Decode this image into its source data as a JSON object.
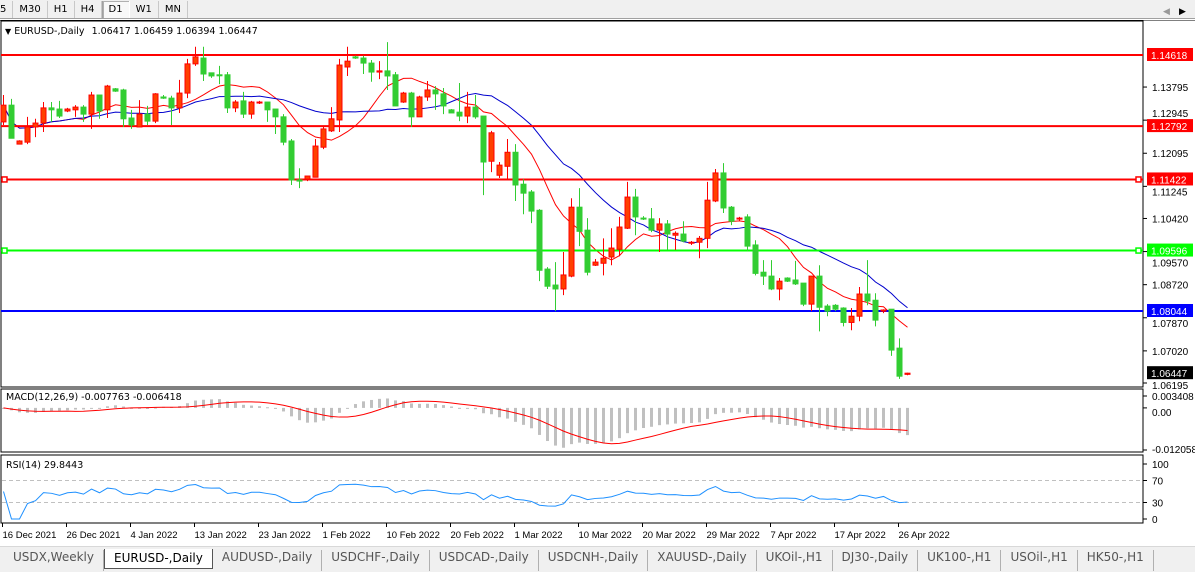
{
  "toolbar": {
    "timeframes": [
      "5",
      "M30",
      "H1",
      "H4",
      "D1",
      "W1",
      "MN"
    ],
    "active": "D1"
  },
  "chart": {
    "symbol": "EURUSD-,Daily",
    "ohlc": "1.06417 1.06459 1.06394 1.06447"
  },
  "chart_data": {
    "type": "candlestick",
    "colors": {
      "bull": "#ff0000",
      "bull_fill": "#ff4000",
      "bear": "#32cd32",
      "ma_fast": "#ff0000",
      "ma_slow": "#0000cd",
      "macd_hist": "#c0c0c0",
      "macd_signal": "#ff0000",
      "rsi": "#1e90ff"
    },
    "candles": [
      [
        1.129,
        1.1359,
        1.1282,
        1.1333
      ],
      [
        1.1333,
        1.1349,
        1.1248,
        1.1248
      ],
      [
        1.1233,
        1.1243,
        1.1233,
        1.1241
      ],
      [
        1.1238,
        1.1303,
        1.1233,
        1.1277
      ],
      [
        1.1277,
        1.1298,
        1.1251,
        1.1287
      ],
      [
        1.1287,
        1.1341,
        1.1264,
        1.1326
      ],
      [
        1.1326,
        1.1341,
        1.129,
        1.1321
      ],
      [
        1.1323,
        1.1344,
        1.13,
        1.1305
      ],
      [
        1.1318,
        1.1326,
        1.1315,
        1.1323
      ],
      [
        1.1321,
        1.1333,
        1.1303,
        1.1328
      ],
      [
        1.1328,
        1.1333,
        1.129,
        1.131
      ],
      [
        1.131,
        1.1367,
        1.1272,
        1.1359
      ],
      [
        1.1359,
        1.1359,
        1.1298,
        1.1318
      ],
      [
        1.1321,
        1.1385,
        1.13,
        1.1382
      ],
      [
        1.1375,
        1.1377,
        1.1367,
        1.1369
      ],
      [
        1.1372,
        1.1375,
        1.1277,
        1.1298
      ],
      [
        1.13,
        1.1321,
        1.1272,
        1.1282
      ],
      [
        1.1277,
        1.1346,
        1.1277,
        1.131
      ],
      [
        1.131,
        1.1331,
        1.1282,
        1.1292
      ],
      [
        1.1292,
        1.1364,
        1.1287,
        1.1362
      ],
      [
        1.1354,
        1.1359,
        1.1349,
        1.1351
      ],
      [
        1.1351,
        1.1357,
        1.1282,
        1.1326
      ],
      [
        1.1326,
        1.1398,
        1.1313,
        1.1364
      ],
      [
        1.1364,
        1.1452,
        1.1351,
        1.1439
      ],
      [
        1.1439,
        1.1483,
        1.1434,
        1.1457
      ],
      [
        1.1454,
        1.1483,
        1.1395,
        1.1413
      ],
      [
        1.1416,
        1.1416,
        1.1403,
        1.1408
      ],
      [
        1.1411,
        1.1434,
        1.1387,
        1.141
      ],
      [
        1.1411,
        1.1418,
        1.1313,
        1.1326
      ],
      [
        1.1326,
        1.1346,
        1.1315,
        1.1341
      ],
      [
        1.1344,
        1.1367,
        1.13,
        1.131
      ],
      [
        1.131,
        1.1344,
        1.1298,
        1.1341
      ],
      [
        1.1339,
        1.1344,
        1.1336,
        1.1341
      ],
      [
        1.1341,
        1.1341,
        1.129,
        1.1321
      ],
      [
        1.1323,
        1.1323,
        1.1259,
        1.1303
      ],
      [
        1.1303,
        1.131,
        1.123,
        1.1238
      ],
      [
        1.1241,
        1.1246,
        1.1128,
        1.1141
      ],
      [
        1.1141,
        1.1171,
        1.112,
        1.1138
      ],
      [
        1.1143,
        1.1151,
        1.1138,
        1.1151
      ],
      [
        1.1148,
        1.1246,
        1.1148,
        1.1228
      ],
      [
        1.1225,
        1.1277,
        1.122,
        1.1272
      ],
      [
        1.1267,
        1.1328,
        1.1264,
        1.1298
      ],
      [
        1.1295,
        1.1452,
        1.1264,
        1.1436
      ],
      [
        1.1431,
        1.1483,
        1.1408,
        1.1446
      ],
      [
        1.1457,
        1.146,
        1.1452,
        1.1454
      ],
      [
        1.1454,
        1.146,
        1.1413,
        1.1441
      ],
      [
        1.1441,
        1.1449,
        1.1393,
        1.1418
      ],
      [
        1.1418,
        1.1446,
        1.14,
        1.1421
      ],
      [
        1.1421,
        1.1495,
        1.1372,
        1.1408
      ],
      [
        1.1411,
        1.1418,
        1.1331,
        1.1331
      ],
      [
        1.1341,
        1.1367,
        1.1339,
        1.1364
      ],
      [
        1.1364,
        1.1367,
        1.1277,
        1.1303
      ],
      [
        1.1303,
        1.1357,
        1.1303,
        1.1354
      ],
      [
        1.1354,
        1.1395,
        1.1344,
        1.1372
      ],
      [
        1.1372,
        1.1382,
        1.1321,
        1.1362
      ],
      [
        1.1362,
        1.1377,
        1.131,
        1.1331
      ],
      [
        1.1321,
        1.1323,
        1.1313,
        1.1313
      ],
      [
        1.1315,
        1.139,
        1.1292,
        1.1305
      ],
      [
        1.1305,
        1.1367,
        1.1287,
        1.1328
      ],
      [
        1.1328,
        1.1359,
        1.1298,
        1.1303
      ],
      [
        1.1305,
        1.1305,
        1.1102,
        1.1187
      ],
      [
        1.1189,
        1.1267,
        1.1161,
        1.1262
      ],
      [
        1.1153,
        1.1187,
        1.1146,
        1.1179
      ],
      [
        1.1176,
        1.1246,
        1.1143,
        1.1212
      ],
      [
        1.1212,
        1.1233,
        1.1087,
        1.1128
      ],
      [
        1.113,
        1.1143,
        1.1053,
        1.1107
      ],
      [
        1.111,
        1.1115,
        1.103,
        1.1061
      ],
      [
        1.1063,
        1.1066,
        1.0881,
        1.0909
      ],
      [
        1.0912,
        1.0917,
        1.0861,
        1.0868
      ],
      [
        1.0871,
        1.093,
        1.0804,
        1.0861
      ],
      [
        1.0861,
        1.0956,
        1.0845,
        1.0897
      ],
      [
        1.0894,
        1.1094,
        1.0891,
        1.1071
      ],
      [
        1.1071,
        1.112,
        1.0971,
        1.1009
      ],
      [
        1.1012,
        1.1043,
        1.0896,
        1.0904
      ],
      [
        1.0922,
        1.0938,
        1.092,
        1.093
      ],
      [
        1.0927,
        1.0991,
        1.0896,
        1.094
      ],
      [
        1.0943,
        1.1017,
        1.0922,
        1.0966
      ],
      [
        1.0963,
        1.1046,
        1.0945,
        1.102
      ],
      [
        1.1017,
        1.1136,
        1.1015,
        1.1097
      ],
      [
        1.1097,
        1.1118,
        1.0999,
        1.1046
      ],
      [
        1.1043,
        1.1048,
        1.1038,
        1.1041
      ],
      [
        1.1041,
        1.1069,
        1.1007,
        1.1012
      ],
      [
        1.1012,
        1.1043,
        1.0956,
        1.1028
      ],
      [
        1.1028,
        1.1038,
        1.0961,
        1.1002
      ],
      [
        1.0999,
        1.1009,
        1.0961,
        1.1004
      ],
      [
        1.1002,
        1.1035,
        1.0981,
        1.0984
      ],
      [
        1.0979,
        1.0984,
        1.0974,
        1.0981
      ],
      [
        1.0981,
        1.0997,
        1.094,
        1.0991
      ],
      [
        1.0991,
        1.1136,
        1.0966,
        1.1089
      ],
      [
        1.1087,
        1.1169,
        1.1084,
        1.1159
      ],
      [
        1.1159,
        1.1184,
        1.1056,
        1.1069
      ],
      [
        1.1071,
        1.1074,
        1.1025,
        1.1035
      ],
      [
        1.1041,
        1.1046,
        1.1036,
        1.1043
      ],
      [
        1.1046,
        1.1053,
        1.0958,
        1.0971
      ],
      [
        1.0974,
        1.0986,
        1.0896,
        1.0901
      ],
      [
        1.0904,
        1.0935,
        1.0871,
        1.0894
      ],
      [
        1.0894,
        1.0935,
        1.0858,
        1.0861
      ],
      [
        1.0861,
        1.0889,
        1.0832,
        1.0881
      ],
      [
        1.0889,
        1.0891,
        1.0879,
        1.0881
      ],
      [
        1.0884,
        1.0933,
        1.0871,
        1.0874
      ],
      [
        1.0876,
        1.0876,
        1.0817,
        1.0822
      ],
      [
        1.0822,
        1.0894,
        1.0804,
        1.0894
      ],
      [
        1.0894,
        1.0922,
        1.0752,
        1.0814
      ],
      [
        1.0817,
        1.0822,
        1.0791,
        1.0804
      ],
      [
        1.0819,
        1.0822,
        1.0804,
        1.0809
      ],
      [
        1.0812,
        1.0814,
        1.0765,
        1.0775
      ],
      [
        1.0775,
        1.0812,
        1.0755,
        1.0791
      ],
      [
        1.0791,
        1.0866,
        1.0778,
        1.0848
      ],
      [
        1.0848,
        1.0935,
        1.0819,
        1.083
      ],
      [
        1.0832,
        1.085,
        1.0765,
        1.0781
      ],
      [
        1.0804,
        1.0809,
        1.0799,
        1.0807
      ],
      [
        1.0809,
        1.0809,
        1.0689,
        1.0704
      ],
      [
        1.0709,
        1.0734,
        1.063,
        1.0637
      ],
      [
        1.06417,
        1.06459,
        1.06394,
        1.06447
      ]
    ],
    "price_ticks": [
      "1.13795",
      "1.12945",
      "1.12095",
      "1.11245",
      "1.10420",
      "1.09570",
      "1.08720",
      "1.07870",
      "1.07020",
      "1.06195"
    ],
    "current_price": "1.06447",
    "horizontal_lines": [
      {
        "price": "1.14618",
        "color": "#ff0000"
      },
      {
        "price": "1.12792",
        "color": "#ff0000"
      },
      {
        "price": "1.11422",
        "color": "#ff0000"
      },
      {
        "price": "1.09596",
        "color": "#00ff00"
      },
      {
        "price": "1.08044",
        "color": "#0000ff"
      }
    ],
    "x_tick_labels": [
      "16 Dec 2021",
      "26 Dec 2021",
      "4 Jan 2022",
      "13 Jan 2022",
      "23 Jan 2022",
      "1 Feb 2022",
      "10 Feb 2022",
      "20 Feb 2022",
      "1 Mar 2022",
      "10 Mar 2022",
      "20 Mar 2022",
      "29 Mar 2022",
      "7 Apr 2022",
      "17 Apr 2022",
      "26 Apr 2022"
    ],
    "macd": {
      "label": "MACD(12,26,9) -0.007763 -0.006418",
      "ticks": [
        "0.003408",
        "0.00",
        "-0.012058"
      ]
    },
    "rsi": {
      "label": "RSI(14) 29.8443",
      "ticks": [
        "100",
        "70",
        "30",
        "0"
      ],
      "levels": [
        70,
        30
      ]
    }
  },
  "tabs": [
    "USDX,Weekly",
    "EURUSD-,Daily",
    "AUDUSD-,Daily",
    "USDCHF-,Daily",
    "USDCAD-,Daily",
    "USDCNH-,Daily",
    "XAUUSD-,Daily",
    "UKOil-,H1",
    "DJ30-,Daily",
    "UK100-,H1",
    "USOil-,H1",
    "HK50-,H1"
  ],
  "active_tab": "EURUSD-,Daily"
}
